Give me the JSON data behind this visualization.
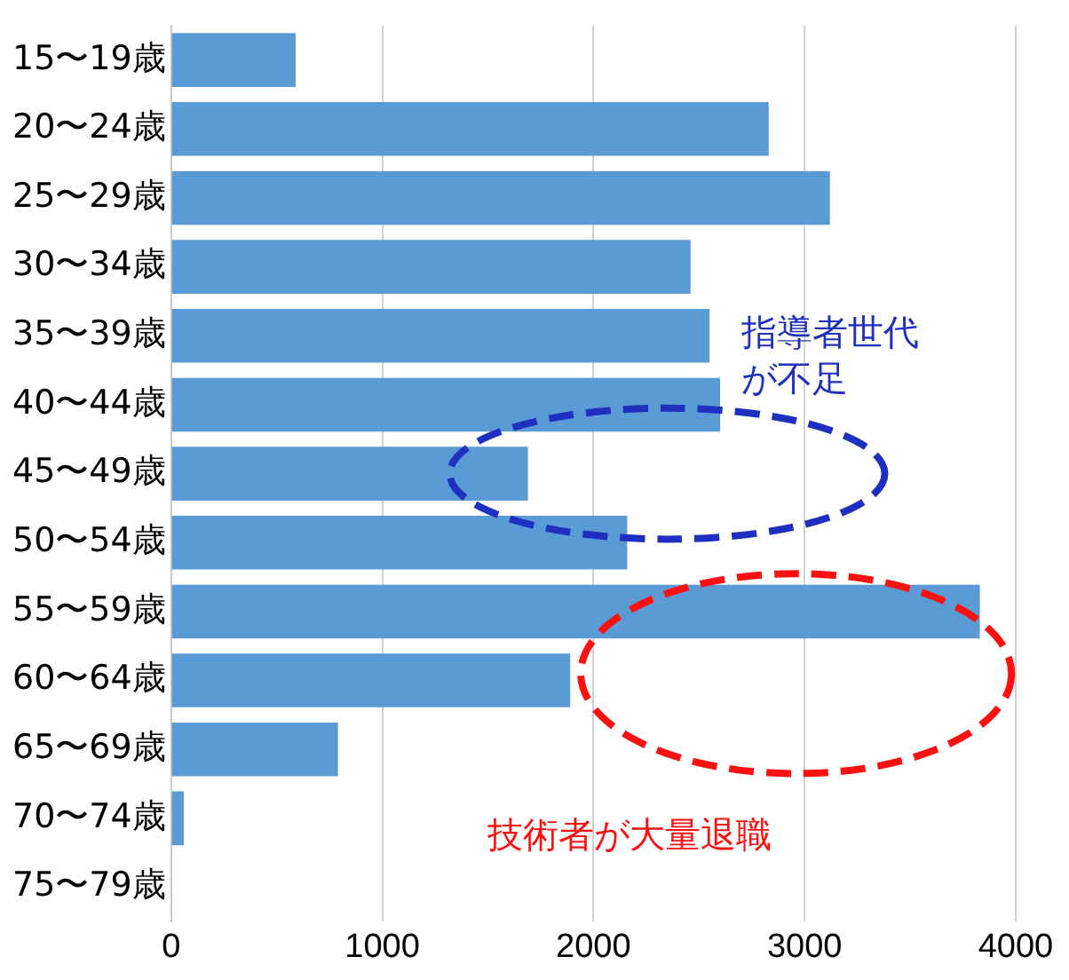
{
  "chart_data": {
    "type": "bar",
    "orientation": "horizontal",
    "categories": [
      "15〜19歳",
      "20〜24歳",
      "25〜29歳",
      "30〜34歳",
      "35〜39歳",
      "40〜44歳",
      "45〜49歳",
      "50〜54歳",
      "55〜59歳",
      "60〜64歳",
      "65〜69歳",
      "70〜74歳",
      "75〜79歳"
    ],
    "values": [
      590,
      2830,
      3120,
      2460,
      2550,
      2600,
      1690,
      2160,
      3830,
      1890,
      790,
      60,
      0
    ],
    "color": "#5b9bd5",
    "xlim": [
      0,
      4000
    ],
    "xticks": [
      0,
      1000,
      2000,
      3000,
      4000
    ],
    "grid": "x",
    "legend": false,
    "annotations": [
      "指導者世代が不足",
      "技術者が大量退職"
    ]
  }
}
